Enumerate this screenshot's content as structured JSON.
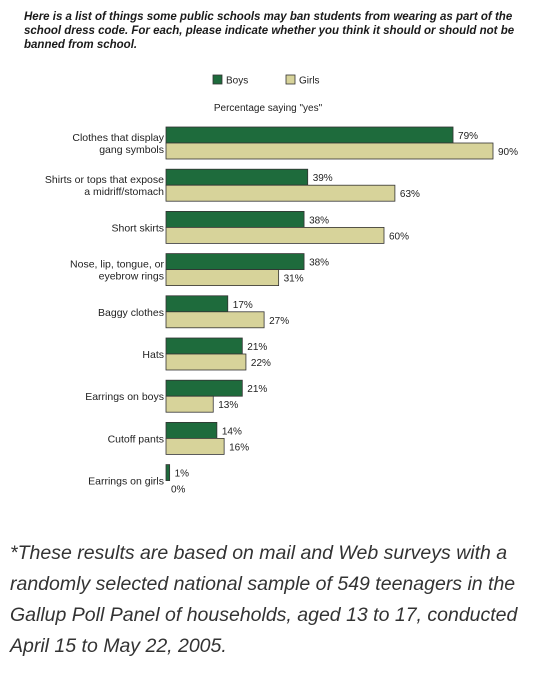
{
  "heading": "Here is a list of things some public schools may ban students from wearing as part of the school dress code. For each, please indicate whether you think it should or should not be banned from school.",
  "chart_data": {
    "type": "bar",
    "orientation": "horizontal",
    "subtitle": "Percentage saying \"yes\"",
    "legend": "top-center",
    "grid": false,
    "xlim": [
      0,
      90
    ],
    "categories": [
      [
        "Clothes that display",
        "gang symbols"
      ],
      [
        "Shirts or tops that expose",
        "a midriff/stomach"
      ],
      [
        "Short skirts"
      ],
      [
        "Nose, lip, tongue, or",
        "eyebrow rings"
      ],
      [
        "Baggy clothes"
      ],
      [
        "Hats"
      ],
      [
        "Earrings on boys"
      ],
      [
        "Cutoff pants"
      ],
      [
        "Earrings on girls"
      ]
    ],
    "series": [
      {
        "name": "Boys",
        "color": "#1e6b3c",
        "values": [
          79,
          39,
          38,
          38,
          17,
          21,
          21,
          14,
          1
        ],
        "labels": [
          "79%",
          "39%",
          "38%",
          "38%",
          "17%",
          "21%",
          "21%",
          "14%",
          "1%"
        ]
      },
      {
        "name": "Girls",
        "color": "#d7d39a",
        "values": [
          90,
          63,
          60,
          31,
          27,
          22,
          13,
          16,
          0
        ],
        "labels": [
          "90%",
          "63%",
          "60%",
          "31%",
          "27%",
          "22%",
          "13%",
          "16%",
          "0%"
        ]
      }
    ]
  },
  "footnote": "*These results are based on mail and Web surveys with a randomly selected national sample of 549 teenagers in the Gallup Poll Panel of households, aged 13 to 17, conducted April 15 to May 22, 2005."
}
